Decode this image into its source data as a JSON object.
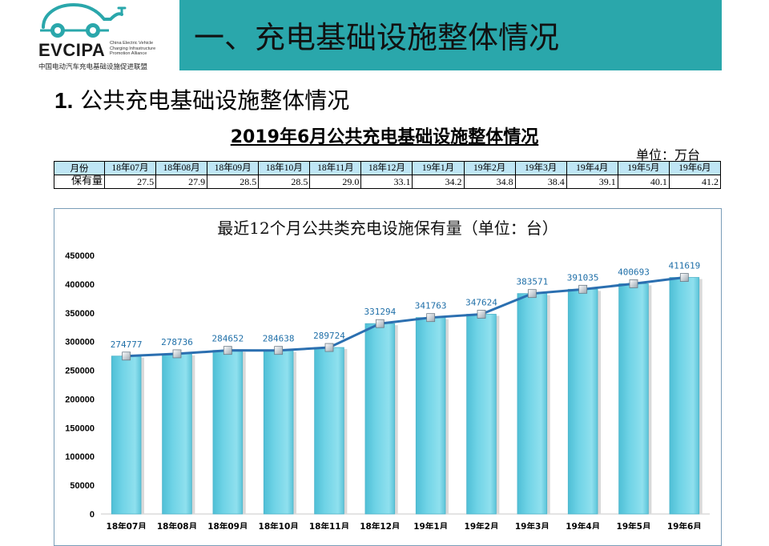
{
  "logo": {
    "brand": "EVCIPA",
    "english_lines": [
      "China Electric Vehicle",
      "Charging Infrastructure",
      "Promotion Alliance"
    ],
    "chinese_name": "中国电动汽车充电基础设施促进联盟",
    "colors": {
      "teal": "#2aa7ab",
      "dark": "#1a1a1a"
    }
  },
  "header": {
    "title": "一、充电基础设施整体情况",
    "background": "#2aa7ab"
  },
  "section": {
    "number": "1.",
    "title": " 公共充电基础设施整体情况"
  },
  "table": {
    "title": "2019年6月公共充电基础设施整体情况",
    "unit": "单位：万台",
    "row_labels": [
      "月份",
      "保有量"
    ],
    "months": [
      "18年07月",
      "18年08月",
      "18年09月",
      "18年10月",
      "18年11月",
      "18年12月",
      "19年1月",
      "19年2月",
      "19年3月",
      "19年4月",
      "19年5月",
      "19年6月"
    ],
    "values": [
      "27.5",
      "27.9",
      "28.5",
      "28.5",
      "29.0",
      "33.1",
      "34.2",
      "34.8",
      "38.4",
      "39.1",
      "40.1",
      "41.2"
    ]
  },
  "chart_data": {
    "type": "bar",
    "title": "最近12个月公共类充电设施保有量（单位：台）",
    "categories": [
      "18年07月",
      "18年08月",
      "18年09月",
      "18年10月",
      "18年11月",
      "18年12月",
      "19年1月",
      "19年2月",
      "19年3月",
      "19年4月",
      "19年5月",
      "19年6月"
    ],
    "values": [
      274777,
      278736,
      284652,
      284638,
      289724,
      331294,
      341763,
      347624,
      383571,
      391035,
      400693,
      411619
    ],
    "overlay": "line",
    "ylim": [
      0,
      450000
    ],
    "yticks": [
      0,
      50000,
      100000,
      150000,
      200000,
      250000,
      300000,
      350000,
      400000,
      450000
    ],
    "grid": false,
    "colors": {
      "bar": "#6fd3e6",
      "line": "#2b6fb0",
      "label": "#1f6fa8"
    }
  }
}
